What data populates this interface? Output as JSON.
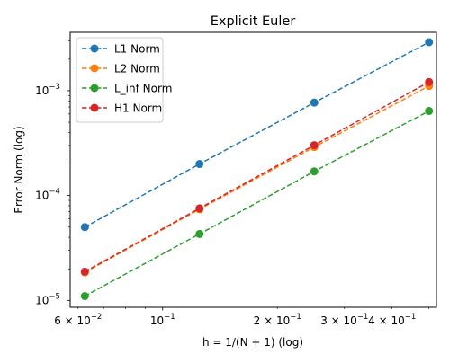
{
  "chart_data": {
    "type": "line",
    "title": "Explicit Euler",
    "xlabel": "h = 1/(N + 1) (log)",
    "ylabel": "Error Norm (log)",
    "xscale": "log",
    "yscale": "log",
    "xlim": [
      0.0572,
      0.523
    ],
    "ylim": [
      8.6e-06,
      0.0036
    ],
    "grid": false,
    "legend_position": "top-left",
    "x": [
      0.0625,
      0.125,
      0.25,
      0.5
    ],
    "series": [
      {
        "name": "L1 Norm",
        "color": "#1f77b4",
        "values": [
          5e-05,
          0.0002,
          0.00077,
          0.0029
        ]
      },
      {
        "name": "L2 Norm",
        "color": "#ff7f0e",
        "values": [
          1.85e-05,
          7.4e-05,
          0.00029,
          0.00111
        ]
      },
      {
        "name": "L_inf Norm",
        "color": "#2ca02c",
        "values": [
          1.1e-05,
          4.3e-05,
          0.00017,
          0.00064
        ]
      },
      {
        "name": "H1 Norm",
        "color": "#d62728",
        "values": [
          1.88e-05,
          7.55e-05,
          0.000302,
          0.00121
        ]
      }
    ],
    "x_major_ticks": [
      {
        "value": 0.1,
        "base": "10",
        "exp": "−1"
      }
    ],
    "x_minor_tick_values": [
      0.06,
      0.07,
      0.08,
      0.09,
      0.2,
      0.3,
      0.4,
      0.5
    ],
    "x_minor_labels": [
      {
        "value": 0.06,
        "mant": "6 × 10",
        "exp": "−2"
      },
      {
        "value": 0.2,
        "mant": "2 × 10",
        "exp": "−1"
      },
      {
        "value": 0.3,
        "mant": "3 × 10",
        "exp": "−1"
      },
      {
        "value": 0.4,
        "mant": "4 × 10",
        "exp": "−1"
      }
    ],
    "y_major_ticks": [
      {
        "value": 1e-05,
        "base": "10",
        "exp": "−5"
      },
      {
        "value": 0.0001,
        "base": "10",
        "exp": "−4"
      },
      {
        "value": 0.001,
        "base": "10",
        "exp": "−3"
      }
    ],
    "y_minor_tick_values": [
      9e-06,
      2e-05,
      3e-05,
      4e-05,
      5e-05,
      6e-05,
      7e-05,
      8e-05,
      9e-05,
      0.0002,
      0.0003,
      0.0004,
      0.0005,
      0.0006,
      0.0007,
      0.0008,
      0.0009,
      0.002,
      0.003
    ]
  }
}
